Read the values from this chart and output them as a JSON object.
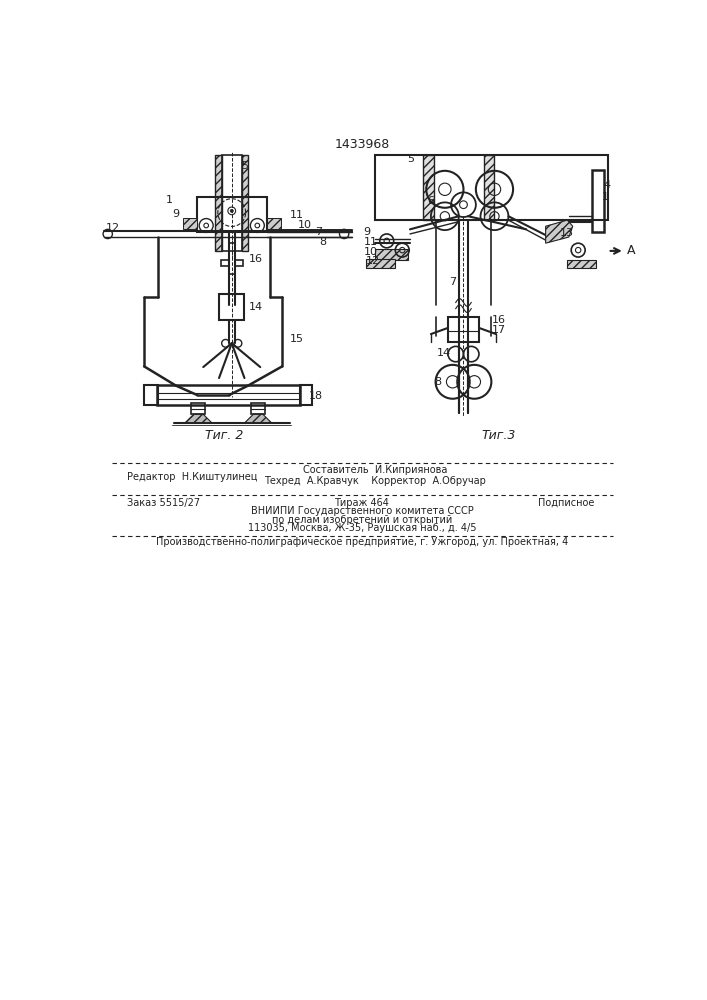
{
  "patent_number": "1433968",
  "fig2_label": "Τиг. 2",
  "fig3_label": "Τиг.3",
  "bg_color": "#ffffff",
  "line_color": "#222222",
  "editor": "Редактор  Н.Киштулинец",
  "sostavitel": "Составитель  И.Киприянова",
  "tekhred": "Техред  А.Кравчук    Корректор  А.Обручар",
  "zakaz": "Заказ 5515/27",
  "tirazh": "Тираж 464",
  "podpisnoe": "Подписное",
  "vniipи": "ВНИИПИ Государственного комитета СССР",
  "po_delam": "по делам изобретений и открытий",
  "address": "113035, Москва, Ж-35, Раушская наб., д. 4/5",
  "proizv": "Производственно-полиграфическое предприятие, г. Ужгород, ул. Проектная, 4"
}
